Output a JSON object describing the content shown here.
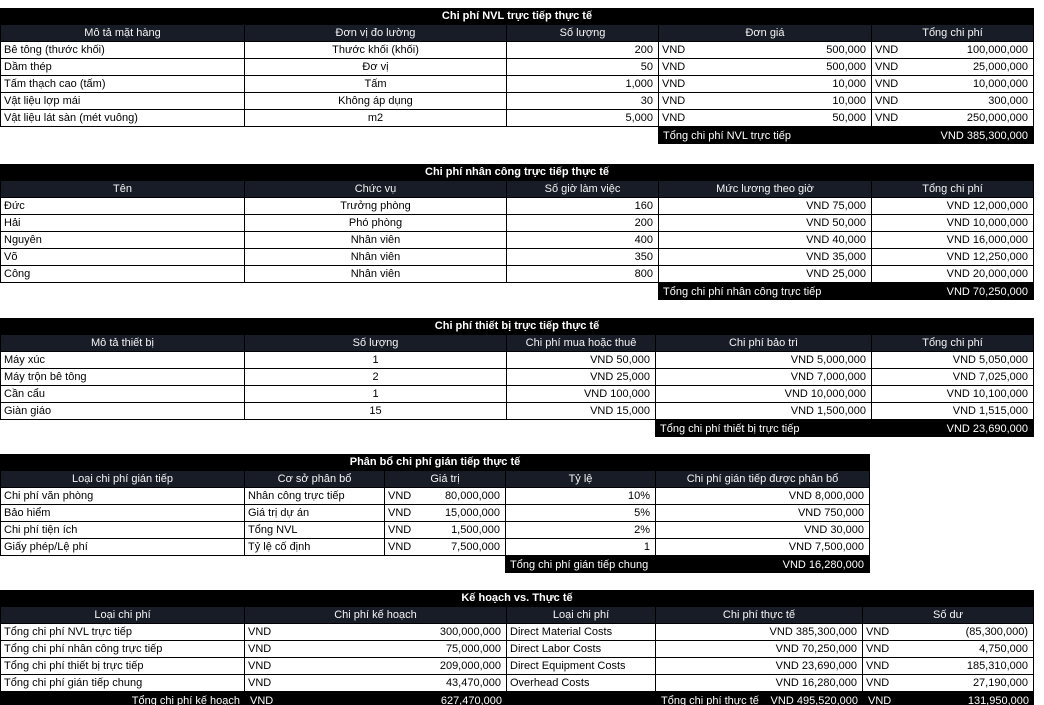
{
  "colors": {
    "title_bar_bg": "#000000",
    "header_row_bg": "#171c26",
    "header_text": "#ffffff",
    "grid_border": "#000000",
    "footer_bar_bg": "#000000",
    "footer_text": "#ffffff",
    "body_text": "#000000"
  },
  "tables": [
    {
      "title": "Chi phí NVL trực tiếp thực tế",
      "headers": [
        "Mô tả mặt hàng",
        "Đơn vị đo lường",
        "Số lượng",
        "Đơn giá",
        "Tổng chi phí"
      ],
      "rows": [
        [
          "Bê tông (thước khối)",
          "Thước khối (khối)",
          "200",
          {
            "l": "VND",
            "r": "500,000"
          },
          {
            "l": "VND",
            "r": "100,000,000"
          }
        ],
        [
          "Dầm thép",
          "Đơ vị",
          "50",
          {
            "l": "VND",
            "r": "500,000"
          },
          {
            "l": "VND",
            "r": "25,000,000"
          }
        ],
        [
          "Tấm thạch cao (tấm)",
          "Tấm",
          "1,000",
          {
            "l": "VND",
            "r": "10,000"
          },
          {
            "l": "VND",
            "r": "10,000,000"
          }
        ],
        [
          "Vật liệu lợp mái",
          "Không áp dụng",
          "30",
          {
            "l": "VND",
            "r": "10,000"
          },
          {
            "l": "VND",
            "r": "300,000"
          }
        ],
        [
          "Vật liệu lát sàn (mét vuông)",
          "m2",
          "5,000",
          {
            "l": "VND",
            "r": "50,000"
          },
          {
            "l": "VND",
            "r": "250,000,000"
          }
        ]
      ],
      "footer": [
        {
          "l": "Tổng chi phí NVL trực tiếp"
        },
        {
          "r": "VND 385,300,000"
        }
      ]
    },
    {
      "title": "Chi phí nhân công trực tiếp thực tế",
      "headers": [
        "Tên",
        "Chức vụ",
        "Số giờ làm việc",
        "Mức lương theo giờ",
        "Tổng chi phí"
      ],
      "rows": [
        [
          "Đức",
          "Trưởng phòng",
          "160",
          "VND 75,000",
          "VND 12,000,000"
        ],
        [
          "Hải",
          "Phó phòng",
          "200",
          "VND 50,000",
          "VND 10,000,000"
        ],
        [
          "Nguyên",
          "Nhân viên",
          "400",
          "VND 40,000",
          "VND 16,000,000"
        ],
        [
          "Võ",
          "Nhân viên",
          "350",
          "VND 35,000",
          "VND 12,250,000"
        ],
        [
          "Công",
          "Nhân viên",
          "800",
          "VND 25,000",
          "VND 20,000,000"
        ]
      ],
      "footer": [
        {
          "l": "Tổng chi phí nhân công trực tiếp"
        },
        {
          "r": "VND 70,250,000"
        }
      ]
    },
    {
      "title": "Chi phí thiết bị trực tiếp thực tế",
      "headers": [
        "Mô tả thiết bị",
        "Số lượng",
        "Chi phí mua hoặc thuê",
        "Chi phí bảo trì",
        "Tổng chi phí"
      ],
      "rows": [
        [
          "Máy xúc",
          "1",
          "VND 50,000",
          "VND 5,000,000",
          "VND 5,050,000"
        ],
        [
          "Máy trộn bê tông",
          "2",
          "VND 25,000",
          "VND 7,000,000",
          "VND 7,025,000"
        ],
        [
          "Cần cẩu",
          "1",
          "VND 100,000",
          "VND 10,000,000",
          "VND 10,100,000"
        ],
        [
          "Giàn giáo",
          "15",
          "VND 15,000",
          "VND 1,500,000",
          "VND 1,515,000"
        ]
      ],
      "footer": [
        {
          "l": "Tổng chi phí thiết bị trực tiếp"
        },
        {
          "r": "VND 23,690,000"
        }
      ]
    },
    {
      "title": "Phân bổ chi phí gián tiếp thực tế",
      "headers": [
        "Loại chi phí gián tiếp",
        "Cơ sở phân bổ",
        "Giá trị",
        "Tỷ lệ",
        "Chi phí gián tiếp được phân bổ"
      ],
      "rows": [
        [
          "Chi phí văn phòng",
          "Nhân công trực tiếp",
          {
            "l": "VND",
            "r": "80,000,000"
          },
          "10%",
          "VND 8,000,000"
        ],
        [
          "Bảo hiểm",
          "Giá trị dự án",
          {
            "l": "VND",
            "r": "15,000,000"
          },
          "5%",
          "VND 750,000"
        ],
        [
          "Chi phí tiện ích",
          "Tổng NVL",
          {
            "l": "VND",
            "r": "1,500,000"
          },
          "2%",
          "VND 30,000"
        ],
        [
          "Giấy phép/Lệ phí",
          "Tỷ lệ cố định",
          {
            "l": "VND",
            "r": "7,500,000"
          },
          "1",
          "VND 7,500,000"
        ]
      ],
      "footer": [
        {
          "l": "Tổng chi phí gián tiếp chung"
        },
        {
          "r": "VND 16,280,000"
        }
      ]
    },
    {
      "title": "Kế hoạch vs. Thực tế",
      "headers": [
        "Loại chi phí",
        "Chi phí kế hoạch",
        "Loại chi phí",
        "Chi phí thực tế",
        "Số dư"
      ],
      "rows": [
        [
          "Tổng chi phí NVL trực tiếp",
          {
            "l": "VND",
            "r": "300,000,000"
          },
          "Direct Material Costs",
          "VND 385,300,000",
          {
            "l": "VND",
            "r": "(85,300,000)"
          }
        ],
        [
          "Tổng chi phí nhân công trực tiếp",
          {
            "l": "VND",
            "r": "75,000,000"
          },
          "Direct Labor Costs",
          "VND 70,250,000",
          {
            "l": "VND",
            "r": "4,750,000"
          }
        ],
        [
          "Tổng chi phí thiết bị trực tiếp",
          {
            "l": "VND",
            "r": "209,000,000"
          },
          "Direct Equipment Costs",
          "VND 23,690,000",
          {
            "l": "VND",
            "r": "185,310,000"
          }
        ],
        [
          "Tổng chi phí gián tiếp chung",
          {
            "l": "VND",
            "r": "43,470,000"
          },
          "Overhead Costs",
          "VND 16,280,000",
          {
            "l": "VND",
            "r": "27,190,000"
          }
        ]
      ],
      "footer": [
        {
          "r": "Tổng chi phí kế hoạch"
        },
        {
          "l": "VND",
          "r": "627,470,000"
        },
        {},
        {
          "l": "Tổng chi phí thực tế",
          "r": "VND 495,520,000"
        },
        {
          "l": "VND",
          "r": "131,950,000"
        }
      ]
    }
  ]
}
